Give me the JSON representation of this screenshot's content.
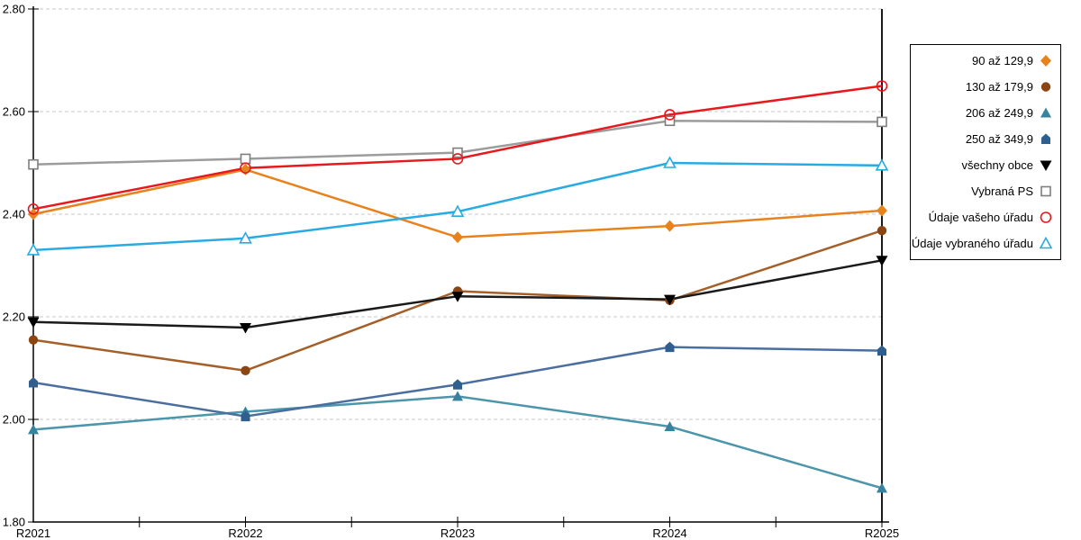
{
  "chart_data": {
    "type": "line",
    "title": "",
    "xlabel": "",
    "ylabel": "",
    "categories": [
      "R2021",
      "R2022",
      "R2023",
      "R2024",
      "R2025"
    ],
    "y_axis": {
      "min": 1.8,
      "max": 2.8,
      "step": 0.2,
      "tick_labels": [
        "2.80",
        "2.60",
        "2.40",
        "2.20",
        "2.00",
        "1.80"
      ]
    },
    "grid": "horizontal-dashed",
    "x_ticks_between_categories": true,
    "legend_position": "right-outside",
    "series": [
      {
        "name": "90 až 129,9",
        "marker": "diamond",
        "fill": "filled",
        "color": "#E8821D",
        "line_color": "#E8821D",
        "values": [
          2.4,
          2.487,
          2.355,
          2.377,
          2.407
        ]
      },
      {
        "name": "130 až 179,9",
        "marker": "circle",
        "fill": "filled",
        "color": "#8B4513",
        "line_color": "#A5602A",
        "values": [
          2.155,
          2.095,
          2.25,
          2.232,
          2.368
        ]
      },
      {
        "name": "206 až 249,9",
        "marker": "triangle-up",
        "fill": "filled",
        "color": "#35839E",
        "line_color": "#4C95AA",
        "values": [
          1.98,
          2.015,
          2.045,
          1.986,
          1.866
        ]
      },
      {
        "name": "250 až 349,9",
        "marker": "pentagon",
        "fill": "filled",
        "color": "#2F5F8F",
        "line_color": "#4A6F9E",
        "values": [
          2.072,
          2.006,
          2.068,
          2.141,
          2.134
        ]
      },
      {
        "name": "všechny obce",
        "marker": "triangle-down",
        "fill": "filled",
        "color": "#000000",
        "line_color": "#1A1A1A",
        "values": [
          2.19,
          2.179,
          2.24,
          2.234,
          2.31
        ]
      },
      {
        "name": "Vybraná PS",
        "marker": "square",
        "fill": "open",
        "color": "#7F7F7F",
        "line_color": "#9C9C9C",
        "values": [
          2.497,
          2.508,
          2.52,
          2.582,
          2.58
        ]
      },
      {
        "name": "Údaje vašeho úřadu",
        "marker": "circle",
        "fill": "open",
        "color": "#E8191C",
        "line_color": "#E8191C",
        "values": [
          2.41,
          2.49,
          2.508,
          2.594,
          2.65
        ]
      },
      {
        "name": "Údaje vybraného úřadu",
        "marker": "triangle-up",
        "fill": "open",
        "color": "#29ABE2",
        "line_color": "#29ABE2",
        "values": [
          2.33,
          2.353,
          2.405,
          2.5,
          2.495
        ]
      }
    ]
  },
  "colors": {
    "gridline": "#C9C9C9",
    "axis": "#000000",
    "background": "#FFFFFF"
  }
}
